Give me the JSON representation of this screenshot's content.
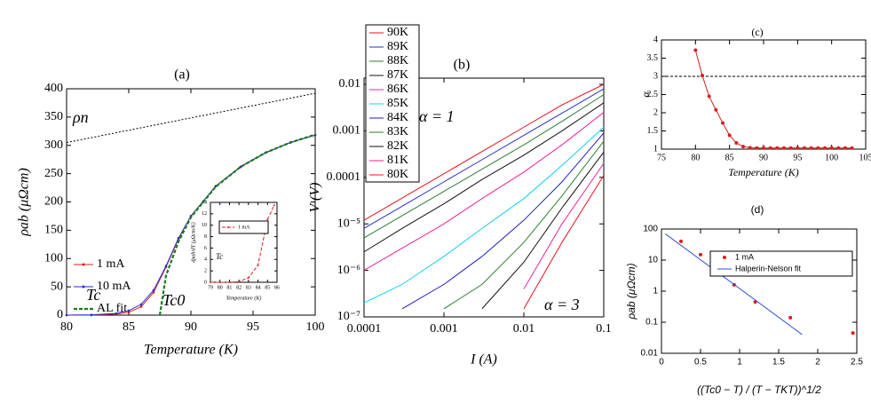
{
  "chart_data": [
    {
      "type": "line",
      "title": "(a)",
      "xlabel": "Temperature (K)",
      "ylabel": "ρab (μΩcm)",
      "xlim": [
        80,
        100
      ],
      "ylim": [
        0,
        400
      ],
      "xticks": [
        80,
        85,
        90,
        95,
        100
      ],
      "yticks": [
        0,
        50,
        100,
        150,
        200,
        250,
        300,
        350,
        400
      ],
      "series": [
        {
          "name": "1 mA",
          "color": "#d62020",
          "marker": true,
          "x": [
            80,
            82,
            84,
            85,
            86,
            87,
            88,
            89,
            90,
            92,
            94,
            96,
            98,
            100
          ],
          "values": [
            0,
            0,
            2,
            5,
            15,
            40,
            85,
            135,
            175,
            228,
            262,
            287,
            305,
            318
          ]
        },
        {
          "name": "10 mA",
          "color": "#2a2ad0",
          "marker": true,
          "x": [
            80,
            82,
            84,
            85,
            86,
            87,
            88,
            89,
            90,
            92,
            94,
            96,
            98,
            100
          ],
          "values": [
            0,
            0.5,
            3,
            8,
            19,
            44,
            87,
            136,
            175,
            228,
            262,
            287,
            305,
            318
          ]
        },
        {
          "name": "AL fit",
          "color": "#1a7a1a",
          "dash": true,
          "x": [
            87.5,
            88,
            89,
            90,
            92,
            94,
            96,
            98,
            100
          ],
          "values": [
            0,
            70,
            130,
            173,
            227,
            262,
            287,
            305,
            319
          ]
        }
      ],
      "reference_line": {
        "x": [
          80,
          100
        ],
        "values": [
          305,
          392
        ]
      },
      "annotations": [
        "ρn",
        "Tc",
        "Tc0"
      ]
    },
    {
      "type": "line",
      "xlabel": "Temperature (K)",
      "ylabel": "dρab/dT (μΩcm/K)",
      "xlim": [
        79,
        86
      ],
      "ylim": [
        0,
        14
      ],
      "xticks": [
        79,
        80,
        81,
        82,
        83,
        84,
        85,
        86
      ],
      "yticks": [
        0,
        2,
        4,
        6,
        8,
        10,
        12,
        14
      ],
      "series": [
        {
          "name": "1 mA",
          "color": "#d62020",
          "marker": true,
          "dash": true,
          "x": [
            79,
            80,
            81,
            82,
            83,
            84,
            85,
            85.7
          ],
          "values": [
            0,
            0,
            0,
            0.1,
            0.8,
            3,
            11,
            13.5
          ]
        }
      ],
      "annotations": [
        "Tc"
      ]
    },
    {
      "type": "line",
      "title": "(b)",
      "xlabel": "I (A)",
      "ylabel": "V (V)",
      "xlog": true,
      "ylog": true,
      "xlim": [
        0.0001,
        0.1
      ],
      "ylim": [
        1e-07,
        0.0136
      ],
      "xticks": [
        0.0001,
        0.001,
        0.01,
        0.1
      ],
      "yticks": [
        0.01,
        0.001,
        0.0001,
        {
          "value": 1e-05,
          "label": "10⁻⁵"
        },
        {
          "value": 1e-06,
          "label": "10⁻⁶"
        },
        {
          "value": 1e-07,
          "label": "10⁻⁷"
        }
      ],
      "x": [
        0.0001,
        0.0003,
        0.001,
        0.003,
        0.01,
        0.03,
        0.1
      ],
      "series": [
        {
          "name": "90K",
          "color": "#e8101c",
          "values": [
            1.2e-05,
            3.6e-05,
            0.00012,
            0.00036,
            0.0012,
            0.0036,
            0.01
          ]
        },
        {
          "name": "89K",
          "color": "#2030d0",
          "values": [
            8e-06,
            2.4e-05,
            8e-05,
            0.00024,
            0.0008,
            0.0024,
            0.008
          ]
        },
        {
          "name": "88K",
          "color": "#2e7d32",
          "values": [
            5e-06,
            1.5e-05,
            5e-05,
            0.00015,
            0.0005,
            0.0016,
            0.006
          ]
        },
        {
          "name": "87K",
          "color": "#111111",
          "values": [
            2.5e-06,
            8e-06,
            2.7e-05,
            9e-05,
            0.0003,
            0.001,
            0.004
          ]
        },
        {
          "name": "86K",
          "color": "#f0209a",
          "values": [
            1e-06,
            3e-06,
            1e-05,
            3.5e-05,
            0.00013,
            0.0005,
            0.0025
          ]
        },
        {
          "name": "85K",
          "color": "#10d0f0",
          "values": [
            2e-07,
            5e-07,
            2e-06,
            8e-06,
            3.5e-05,
            0.00018,
            0.0012
          ]
        },
        {
          "name": "84K",
          "color": "#1c1cc8",
          "values": [
            null,
            1.5e-07,
            5e-07,
            2e-06,
            1.2e-05,
            8e-05,
            0.0009
          ]
        },
        {
          "name": "83K",
          "color": "#2e7d32",
          "values": [
            null,
            null,
            1.5e-07,
            5e-07,
            4e-06,
            4e-05,
            0.0006
          ]
        },
        {
          "name": "82K",
          "color": "#111111",
          "values": [
            null,
            null,
            null,
            1.5e-07,
            1.5e-06,
            2.2e-05,
            0.00035
          ]
        },
        {
          "name": "81K",
          "color": "#f0209a",
          "values": [
            null,
            null,
            null,
            null,
            4e-07,
            1e-05,
            0.0002
          ]
        },
        {
          "name": "80K",
          "color": "#e8101c",
          "values": [
            null,
            null,
            null,
            null,
            1.5e-07,
            4e-06,
            0.00011
          ]
        }
      ],
      "annotations": [
        "α = 1",
        "α = 3"
      ]
    },
    {
      "type": "line",
      "title": "(c)",
      "xlabel": "Temperature (K)",
      "ylabel": "α",
      "xlim": [
        75,
        105
      ],
      "ylim": [
        1,
        4
      ],
      "xticks": [
        75,
        80,
        85,
        90,
        95,
        100,
        105
      ],
      "yticks": [
        1,
        1.5,
        2,
        2.5,
        3,
        3.5,
        4
      ],
      "hline": 3,
      "series": [
        {
          "color": "#d62020",
          "marker": true,
          "x": [
            80,
            81,
            82,
            83,
            84,
            85,
            86,
            87,
            88,
            89,
            90,
            91,
            92,
            93,
            94,
            95,
            96,
            97,
            98,
            99,
            100,
            101,
            102,
            103
          ],
          "values": [
            3.72,
            3.02,
            2.45,
            2.08,
            1.72,
            1.38,
            1.17,
            1.07,
            1.04,
            1.03,
            1.03,
            1.03,
            1.03,
            1.03,
            1.03,
            1.03,
            1.03,
            1.03,
            1.03,
            1.03,
            1.03,
            1.03,
            1.03,
            1.03
          ]
        }
      ]
    },
    {
      "type": "scatter",
      "title": "(d)",
      "xlabel": "((Tc0 − T) / (T − TKT))^1/2",
      "ylabel": "ρab (μΩcm)",
      "ylog": true,
      "xlim": [
        0,
        2.5
      ],
      "ylim": [
        0.01,
        100
      ],
      "xticks": [
        0,
        0.5,
        1,
        1.5,
        2,
        2.5
      ],
      "yticks": [
        0.01,
        0.1,
        1,
        10,
        100
      ],
      "series": [
        {
          "name": "1 mA",
          "color": "#e01818",
          "mode": "markers",
          "x": [
            0.25,
            0.5,
            0.7,
            0.93,
            1.2,
            1.65,
            2.45
          ],
          "values": [
            40,
            15,
            5.5,
            1.6,
            0.45,
            0.14,
            0.045
          ]
        },
        {
          "name": "Halperin-Nelson fit",
          "color": "#3050d0",
          "mode": "line",
          "x": [
            0.05,
            1.8
          ],
          "values": [
            70,
            0.04
          ]
        }
      ]
    }
  ]
}
